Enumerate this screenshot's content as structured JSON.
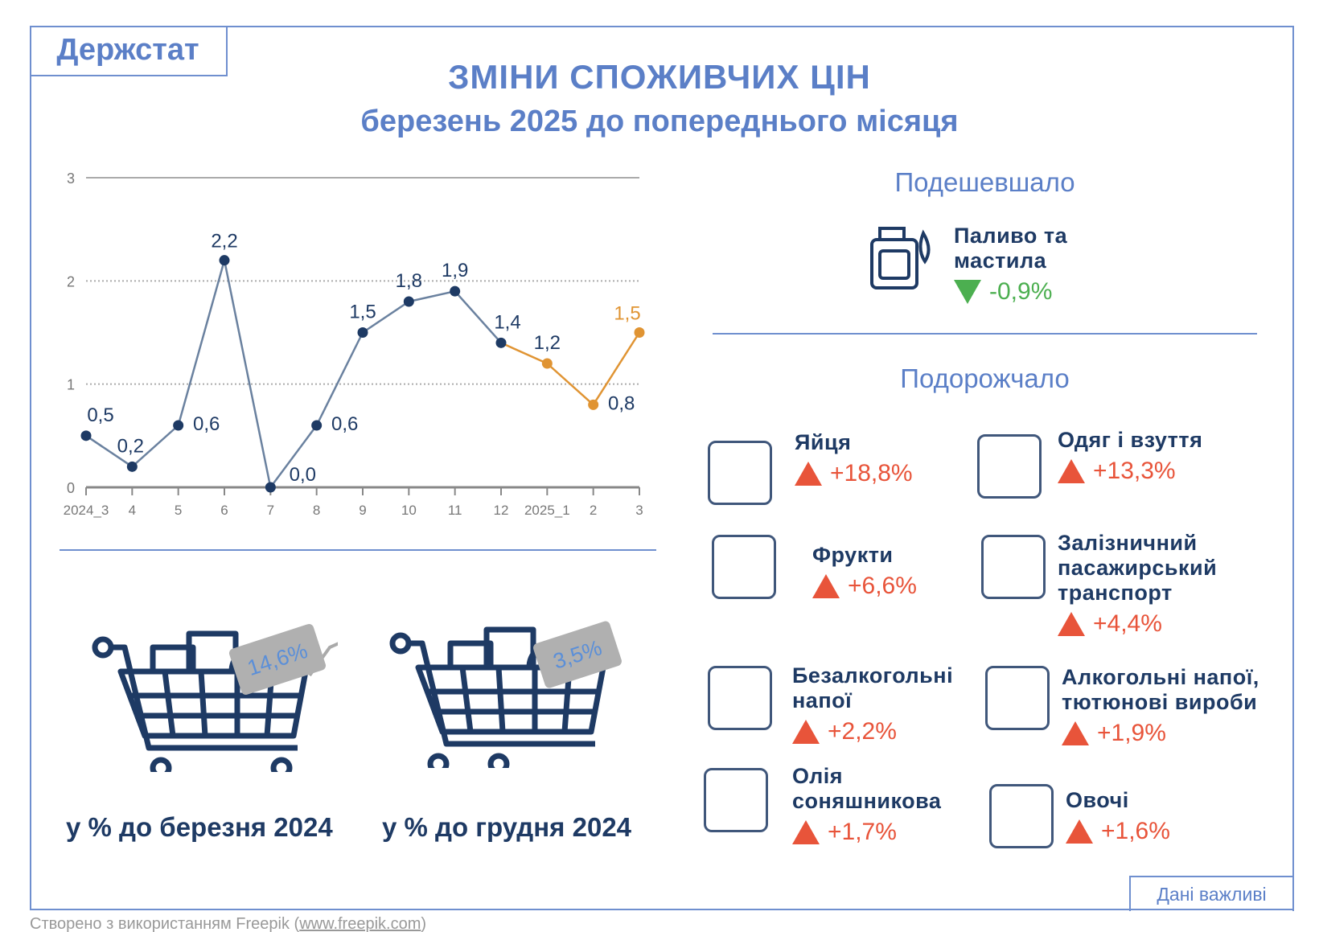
{
  "logo": "Держстат",
  "title": "ЗМІНИ СПОЖИВЧИХ ЦІН",
  "subtitle": "березень 2025 до попереднього місяця",
  "chart_data": {
    "type": "line",
    "categories": [
      "2024_3",
      "4",
      "5",
      "6",
      "7",
      "8",
      "9",
      "10",
      "11",
      "12",
      "2025_1",
      "2",
      "3"
    ],
    "values": [
      0.5,
      0.2,
      0.6,
      2.2,
      0.0,
      0.6,
      1.5,
      1.8,
      1.9,
      1.4,
      1.2,
      0.8,
      1.5
    ],
    "labels": [
      "0,5",
      "0,2",
      "0,6",
      "2,2",
      "0,0",
      "0,6",
      "1,5",
      "1,8",
      "1,9",
      "1,4",
      "1,2",
      "0,8",
      "1,5"
    ],
    "yticks": [
      "0",
      "1",
      "2",
      "3"
    ],
    "ylim": [
      0,
      3
    ],
    "series_colors": {
      "2024": "#6a819f",
      "2025": "#e09433"
    },
    "grid": true,
    "title": "",
    "xlabel": "",
    "ylabel": ""
  },
  "cheaper": {
    "heading": "Подешевшало",
    "items": [
      {
        "name": "Паливо та мастила",
        "change": "-0,9%",
        "icon": "fuel-canister-icon"
      }
    ]
  },
  "pricier": {
    "heading": "Подорожчало",
    "items": [
      {
        "name": "Яйця",
        "change": "+18,8%",
        "icon": "eggs-icon"
      },
      {
        "name": "Одяг і взуття",
        "change": "+13,3%",
        "icon": "clothes-icon"
      },
      {
        "name": "Фрукти",
        "change": "+6,6%",
        "icon": "fruits-icon"
      },
      {
        "name": "Залізничний пасажирський транспорт",
        "change": "+4,4%",
        "icon": "train-icon"
      },
      {
        "name": "Безалкогольні напої",
        "change": "+2,2%",
        "icon": "soft-drinks-icon"
      },
      {
        "name": "Алкогольні напої, тютюнові вироби",
        "change": "+1,9%",
        "icon": "alcohol-icon"
      },
      {
        "name": "Олія соняшникова",
        "change": "+1,7%",
        "icon": "oil-bottle-icon"
      },
      {
        "name": "Овочі",
        "change": "+1,6%",
        "icon": "vegetables-icon"
      }
    ]
  },
  "annual": [
    {
      "value": "14,6%",
      "label": "у % до березня 2024"
    },
    {
      "value": "3,5%",
      "label": "у % до грудня 2024"
    }
  ],
  "badge": "Дані важливі",
  "footer": {
    "text": "Створено з використанням Freepik (",
    "link": "www.freepik.com",
    "end": ")"
  },
  "colors": {
    "accent": "#5b7fc7",
    "navy": "#1e3a64",
    "up": "#e8543a",
    "down": "#4caf50",
    "orange": "#e09433"
  }
}
